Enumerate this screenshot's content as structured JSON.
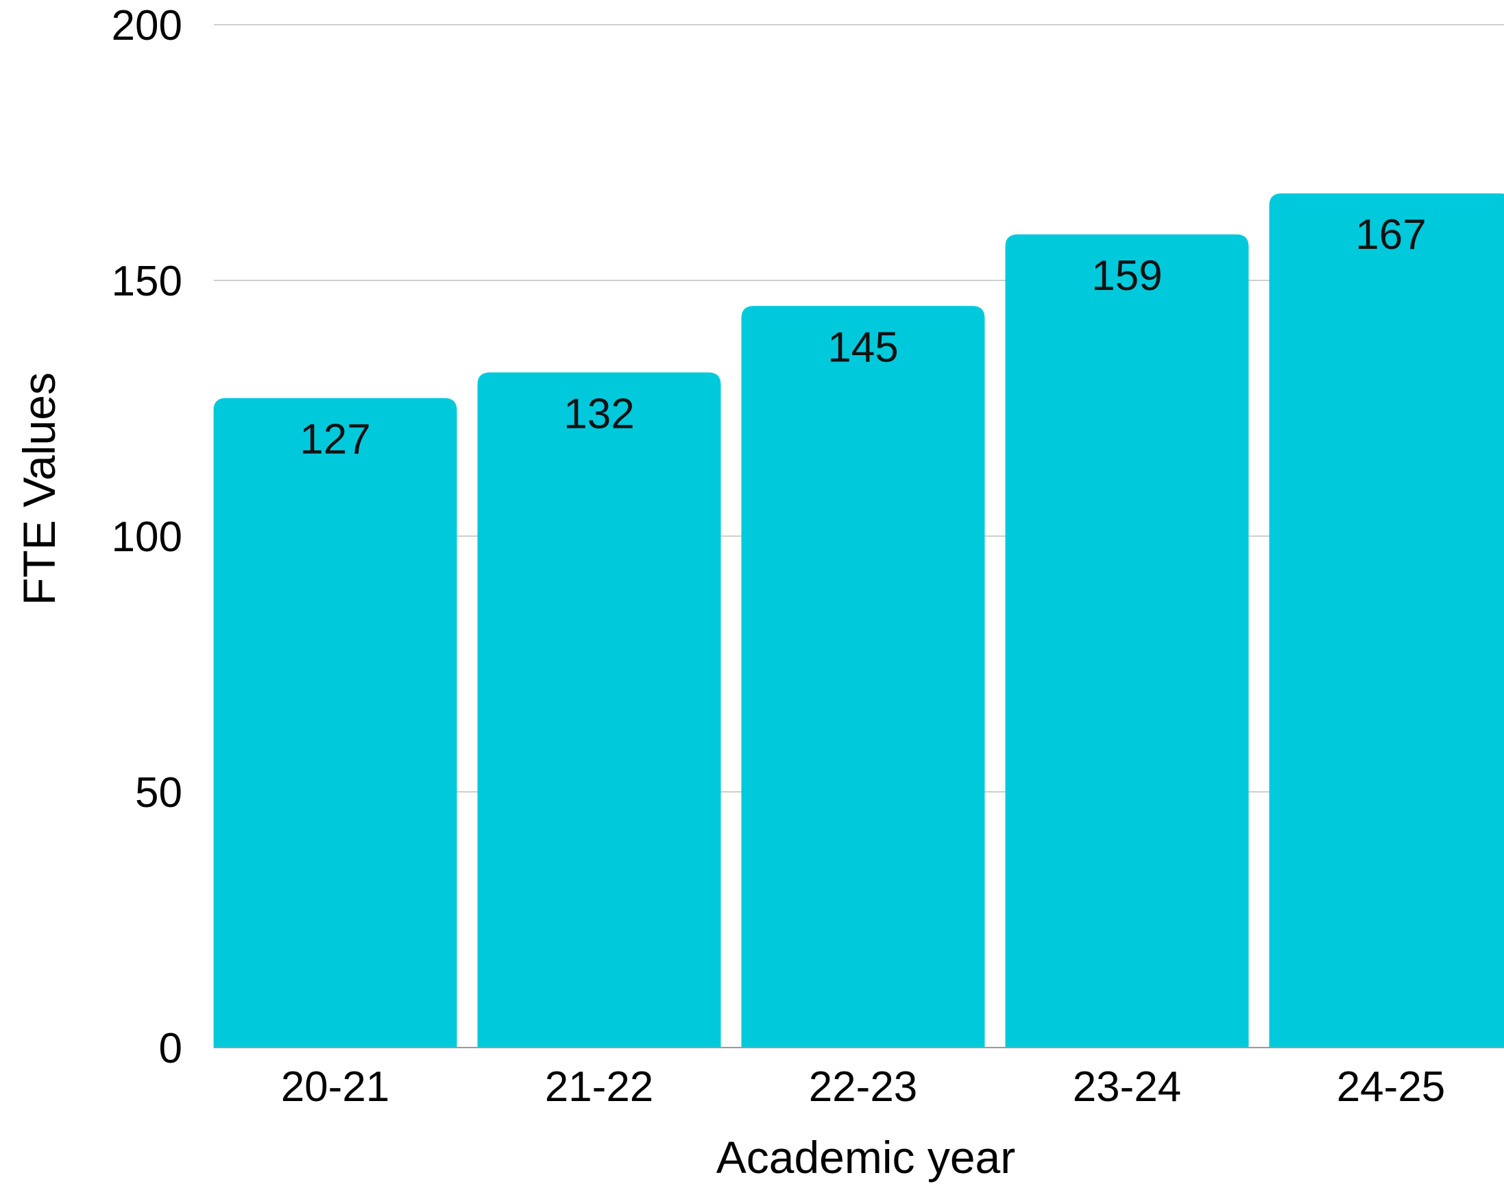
{
  "chart_data": {
    "type": "bar",
    "title": "",
    "xlabel": "Academic year",
    "ylabel": "FTE Values",
    "categories": [
      "20-21",
      "21-22",
      "22-23",
      "23-24",
      "24-25"
    ],
    "values": [
      127,
      132,
      145,
      159,
      167
    ],
    "ylim": [
      0,
      200
    ],
    "yticks": [
      0,
      50,
      100,
      150,
      200
    ],
    "ytick_labels": [
      "0",
      "50",
      "100",
      "150",
      "200"
    ],
    "data_labels": [
      "127",
      "132",
      "145",
      "159",
      "167"
    ],
    "grid": true,
    "bar_color": "#00C9DC",
    "legend": "none"
  }
}
